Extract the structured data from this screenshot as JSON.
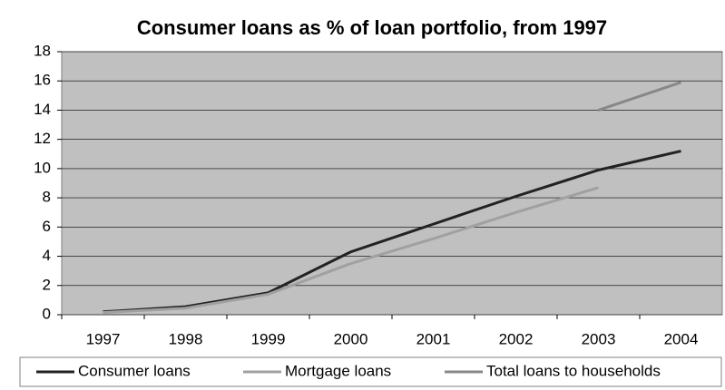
{
  "chart_data": {
    "type": "line",
    "title": "Consumer loans as % of loan portfolio, from 1997",
    "categories": [
      "1997",
      "1998",
      "1999",
      "2000",
      "2001",
      "2002",
      "2003",
      "2004"
    ],
    "series": [
      {
        "name": "Consumer loans",
        "color": "#222222",
        "values": [
          0.2,
          0.55,
          1.5,
          4.3,
          6.2,
          8.1,
          9.9,
          11.2
        ]
      },
      {
        "name": "Mortgage loans",
        "color": "#a0a0a0",
        "values": [
          0.15,
          0.45,
          1.4,
          3.5,
          5.2,
          7.0,
          8.7,
          null
        ]
      },
      {
        "name": "Total loans to households",
        "color": "#888888",
        "values": [
          null,
          null,
          null,
          null,
          null,
          null,
          14,
          15.9
        ]
      }
    ],
    "ylim": [
      0,
      18
    ],
    "yticks": [
      0,
      2,
      4,
      6,
      8,
      10,
      12,
      14,
      16,
      18
    ],
    "grid": true,
    "legend": "bottom"
  }
}
